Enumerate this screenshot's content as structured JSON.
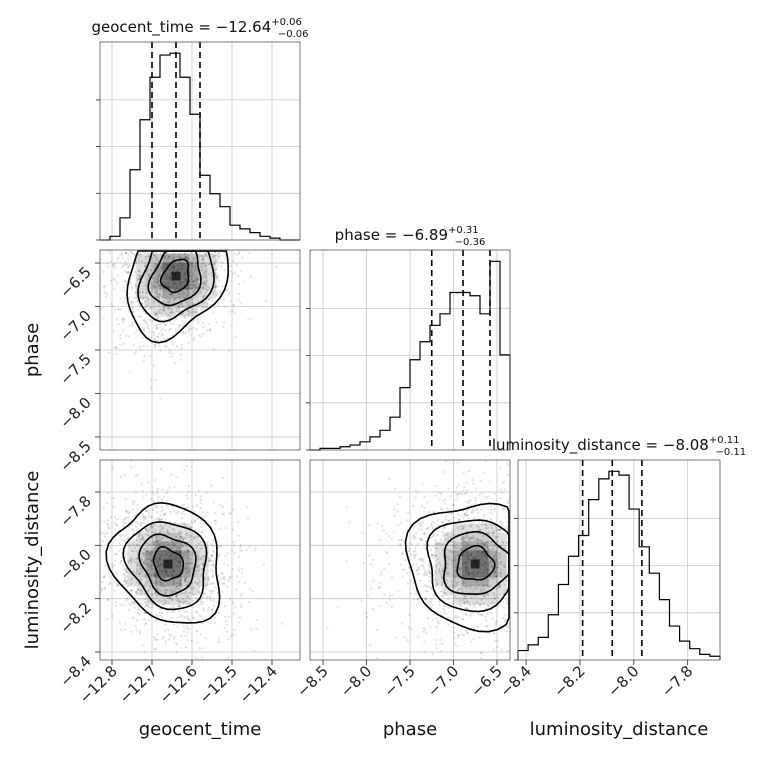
{
  "chart_data": {
    "type": "corner",
    "parameters": [
      "geocent_time",
      "phase",
      "luminosity_distance"
    ],
    "axis_labels": [
      "geocent_time",
      "phase",
      "luminosity_distance"
    ],
    "ranges": {
      "geocent_time": [
        -12.83,
        -12.33
      ],
      "phase": [
        -8.65,
        -6.35
      ],
      "luminosity_distance": [
        -8.43,
        -7.68
      ]
    },
    "ticks": {
      "geocent_time": [
        "−12.8",
        "−12.7",
        "−12.6",
        "−12.5",
        "−12.4"
      ],
      "phase": [
        "−8.5",
        "−8.0",
        "−7.5",
        "−7.0",
        "−6.5"
      ],
      "luminosity_distance": [
        "−8.4",
        "−8.2",
        "−8.0",
        "−7.8"
      ]
    },
    "tick_values": {
      "geocent_time": [
        -12.8,
        -12.7,
        -12.6,
        -12.5,
        -12.4
      ],
      "phase": [
        -8.5,
        -8.0,
        -7.5,
        -7.0,
        -6.5
      ],
      "luminosity_distance": [
        -8.4,
        -8.2,
        -8.0,
        -7.8
      ]
    },
    "titles": [
      {
        "text": "geocent_time = −12.64",
        "plus": "+0.06",
        "minus": "−0.06"
      },
      {
        "text": "phase = −6.89",
        "plus": "+0.31",
        "minus": "−0.36"
      },
      {
        "text": "luminosity_distance = −8.08",
        "plus": "+0.11",
        "minus": "−0.11"
      }
    ],
    "summary": [
      {
        "median": -12.64,
        "plus": 0.06,
        "minus": 0.06
      },
      {
        "median": -6.89,
        "plus": 0.31,
        "minus": 0.36
      },
      {
        "median": -8.08,
        "plus": 0.11,
        "minus": 0.11
      }
    ],
    "histograms": {
      "geocent_time": {
        "bin_start": -12.83,
        "bin_width": 0.025,
        "counts": [
          0,
          2,
          12,
          38,
          65,
          88,
          100,
          101,
          88,
          68,
          35,
          25,
          18,
          8,
          6,
          4,
          2,
          1,
          0,
          0
        ]
      },
      "phase": {
        "bin_start": -8.65,
        "bin_width": 0.115,
        "counts": [
          0,
          1,
          1,
          2,
          3,
          5,
          8,
          12,
          20,
          38,
          55,
          66,
          76,
          83,
          96,
          96,
          94,
          83,
          115,
          58
        ]
      },
      "luminosity_distance": {
        "bin_start": -8.43,
        "bin_width": 0.0375,
        "counts": [
          5,
          8,
          12,
          24,
          40,
          55,
          66,
          85,
          96,
          100,
          98,
          80,
          60,
          46,
          32,
          18,
          10,
          6,
          3,
          2
        ]
      }
    },
    "density_peaks": {
      "phase_vs_geocent_time": {
        "x": -12.64,
        "y": -6.65
      },
      "luminosity_distance_vs_geocent_time": {
        "x": -12.66,
        "y": -8.07
      },
      "luminosity_distance_vs_phase": {
        "x": -6.75,
        "y": -8.07
      }
    },
    "grid": true
  }
}
